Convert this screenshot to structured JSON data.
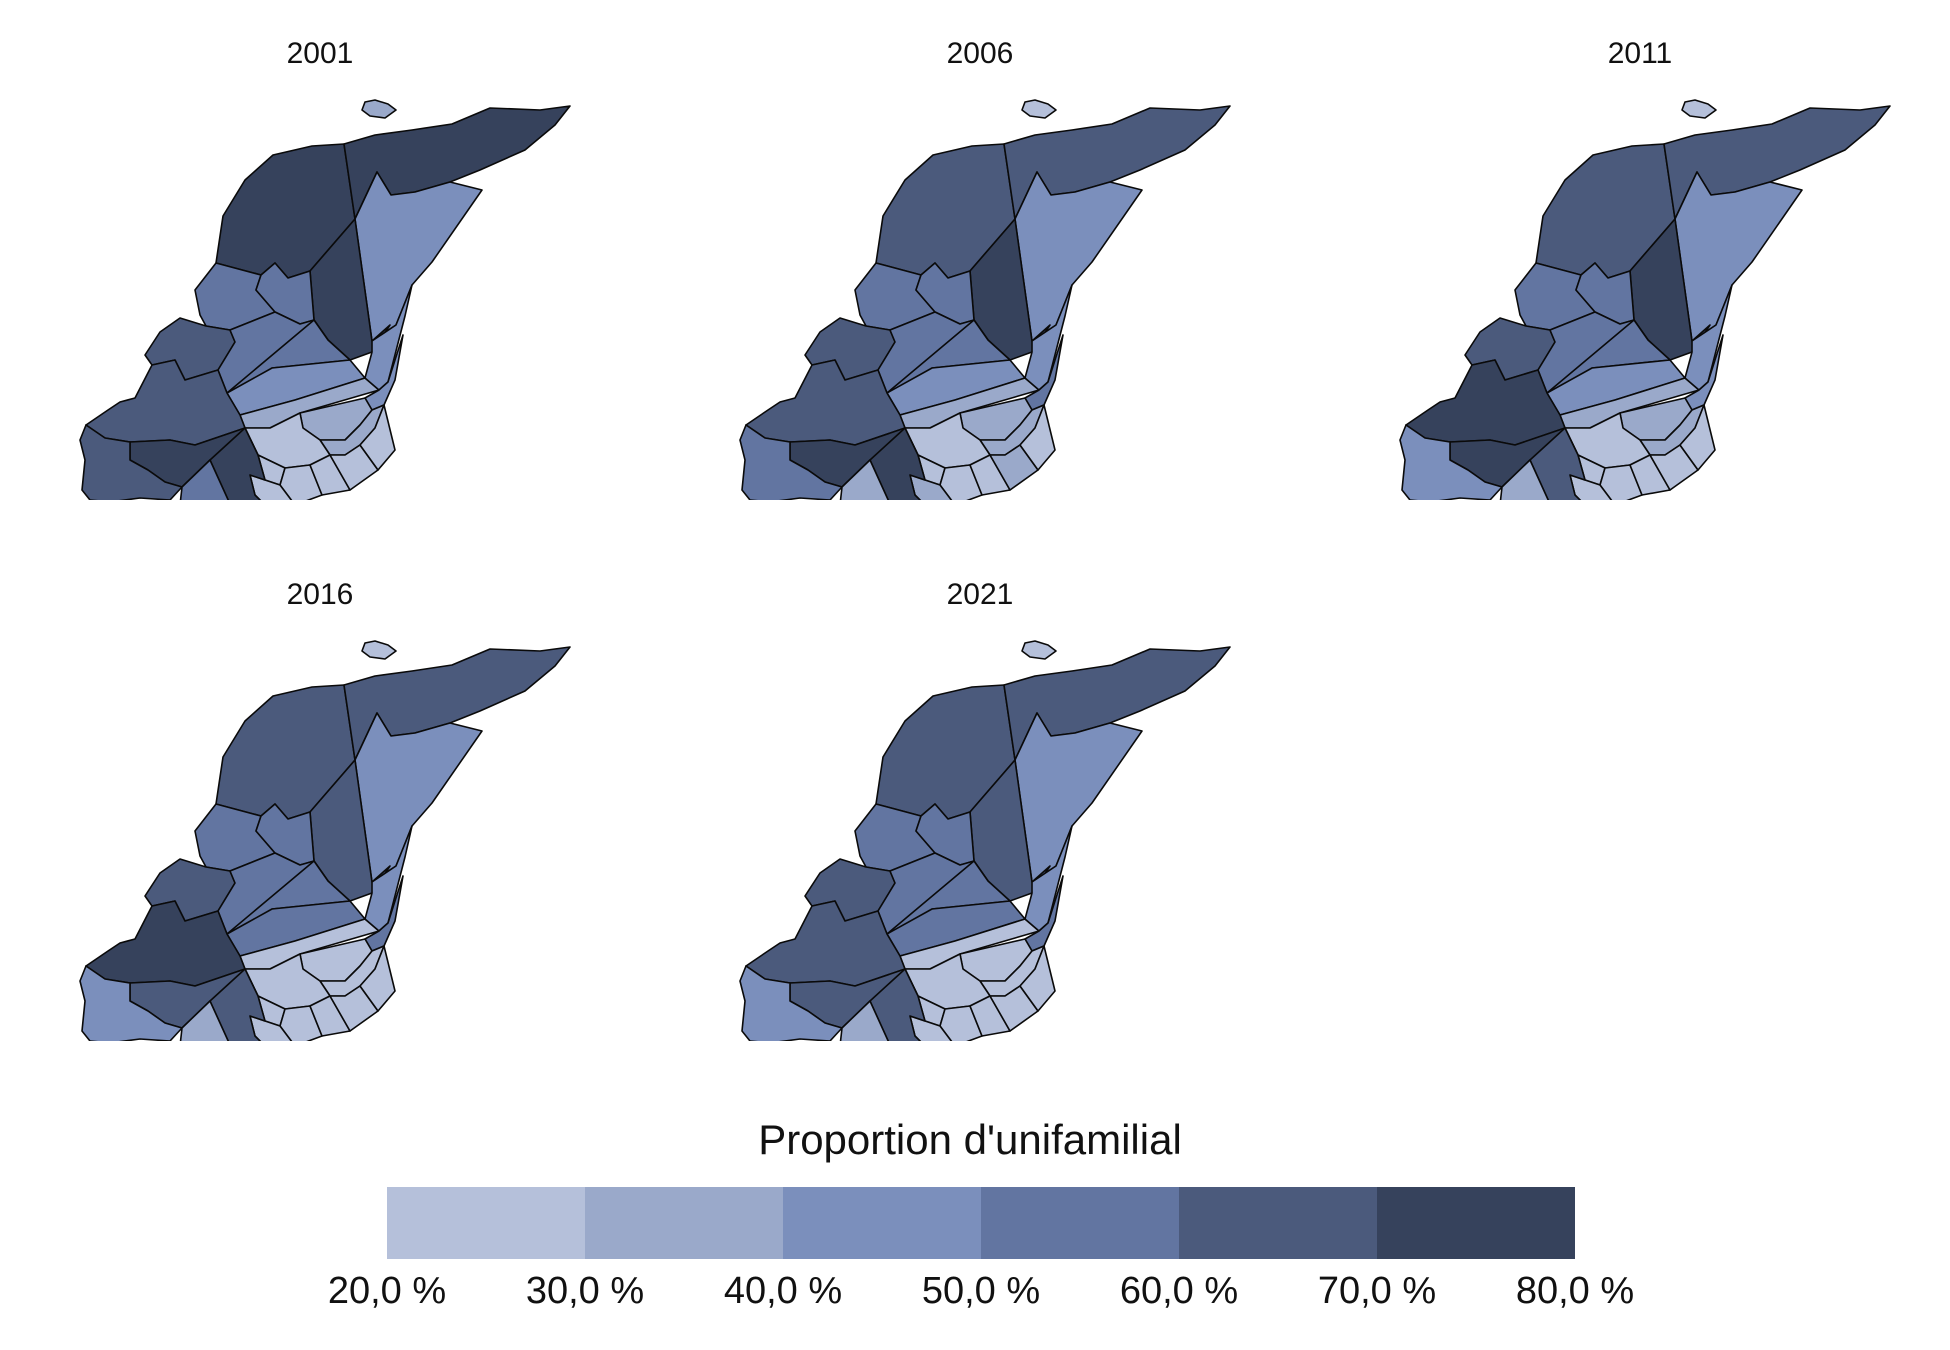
{
  "maps": [
    {
      "year": "2001",
      "zones": [
        6,
        6,
        3,
        6,
        4,
        4,
        5,
        4,
        4,
        3,
        2,
        3,
        3,
        2,
        2,
        1,
        1,
        1,
        1,
        1,
        1,
        1,
        5,
        6,
        6,
        5,
        4,
        2
      ]
    },
    {
      "year": "2006",
      "zones": [
        5,
        5,
        3,
        6,
        4,
        4,
        5,
        4,
        4,
        3,
        2,
        3,
        4,
        2,
        2,
        1,
        1,
        1,
        1,
        2,
        1,
        2,
        5,
        6,
        6,
        4,
        2,
        1
      ]
    },
    {
      "year": "2011",
      "zones": [
        5,
        5,
        3,
        6,
        4,
        4,
        5,
        4,
        4,
        3,
        2,
        3,
        3,
        2,
        2,
        1,
        1,
        1,
        1,
        1,
        1,
        1,
        6,
        6,
        5,
        3,
        2,
        1
      ]
    },
    {
      "year": "2016",
      "zones": [
        5,
        5,
        3,
        5,
        4,
        4,
        5,
        4,
        4,
        4,
        1,
        3,
        4,
        1,
        1,
        1,
        1,
        1,
        1,
        1,
        1,
        1,
        6,
        5,
        5,
        3,
        2,
        1
      ]
    },
    {
      "year": "2021",
      "zones": [
        5,
        5,
        3,
        5,
        4,
        4,
        5,
        4,
        4,
        4,
        1,
        3,
        4,
        1,
        1,
        1,
        1,
        1,
        1,
        1,
        1,
        1,
        5,
        5,
        5,
        3,
        2,
        1
      ]
    }
  ],
  "legend": {
    "title": "Proportion d'unifamilial",
    "colors": [
      "#b5c0da",
      "#9aa9ca",
      "#7b8fbc",
      "#6275a1",
      "#4b5a7c",
      "#36425c"
    ],
    "ticks": [
      "20,0 %",
      "30,0 %",
      "40,0 %",
      "50,0 %",
      "60,0 %",
      "70,0 %",
      "80,0 %"
    ],
    "range": [
      20,
      80
    ]
  }
}
